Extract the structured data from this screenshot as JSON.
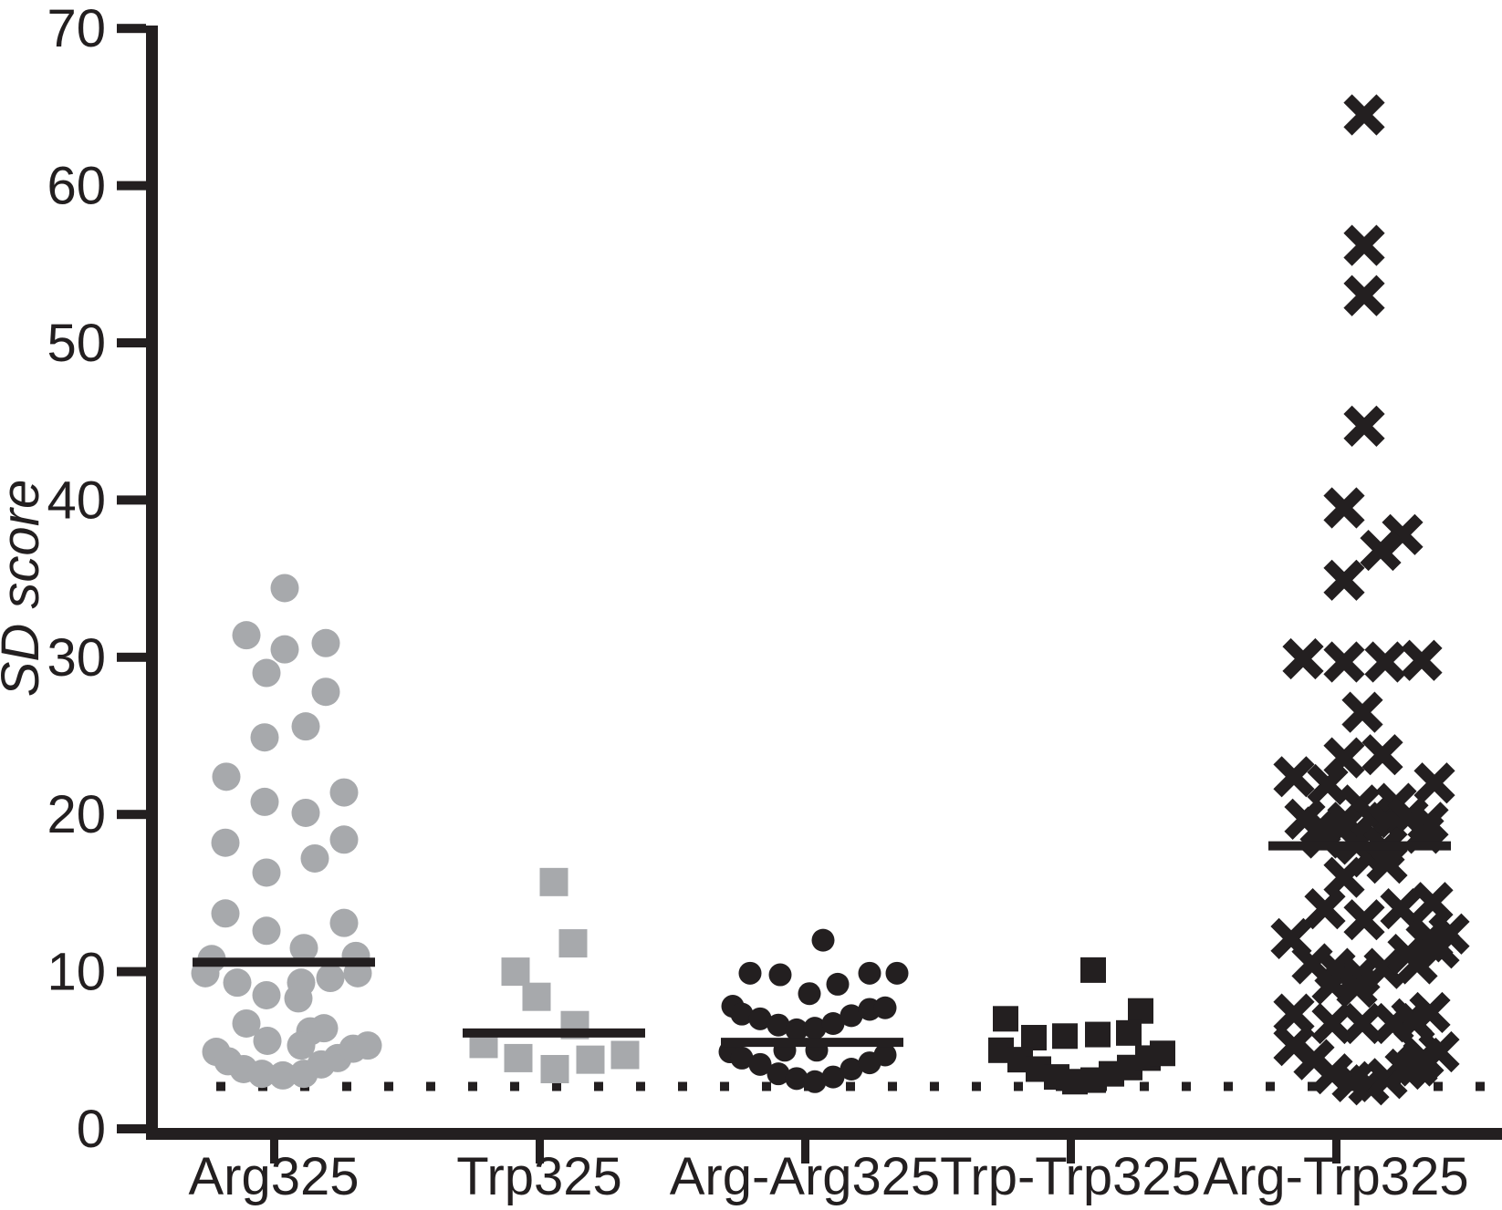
{
  "chart_data": {
    "type": "scatter",
    "title": "",
    "ylabel": "SD score",
    "xlabel": "",
    "ylim": [
      0,
      70
    ],
    "y_ticks": [
      0,
      10,
      20,
      30,
      40,
      50,
      60,
      70
    ],
    "grid": false,
    "legend": "none",
    "threshold_line": {
      "value": 2.7,
      "style": "dotted",
      "color": "#231f20"
    },
    "marker_colors": {
      "gray": "#a7a9ac",
      "black": "#231f20"
    },
    "groups": [
      {
        "label": "Arg325",
        "marker": "circle",
        "color": "#a7a9ac",
        "median": 10.6,
        "median_dx": 11,
        "points": [
          [
            12,
            34.4
          ],
          [
            -30,
            31.4
          ],
          [
            12,
            30.5
          ],
          [
            57,
            30.9
          ],
          [
            -8,
            29.0
          ],
          [
            57,
            27.8
          ],
          [
            35,
            25.6
          ],
          [
            -10,
            24.9
          ],
          [
            -52,
            22.4
          ],
          [
            77,
            21.4
          ],
          [
            -10,
            20.8
          ],
          [
            35,
            20.1
          ],
          [
            -53,
            18.2
          ],
          [
            77,
            18.4
          ],
          [
            45,
            17.2
          ],
          [
            -8,
            16.3
          ],
          [
            -53,
            13.7
          ],
          [
            77,
            13.1
          ],
          [
            -8,
            12.6
          ],
          [
            33,
            11.5
          ],
          [
            -68,
            10.8
          ],
          [
            90,
            11.0
          ],
          [
            -75,
            9.9
          ],
          [
            -40,
            9.3
          ],
          [
            30,
            9.3
          ],
          [
            62,
            9.6
          ],
          [
            92,
            9.9
          ],
          [
            -8,
            8.5
          ],
          [
            27,
            8.3
          ],
          [
            -30,
            6.7
          ],
          [
            55,
            6.4
          ],
          [
            40,
            6.2
          ],
          [
            -7,
            5.6
          ],
          [
            30,
            5.3
          ],
          [
            -63,
            4.9
          ],
          [
            -50,
            4.3
          ],
          [
            -33,
            3.8
          ],
          [
            -13,
            3.5
          ],
          [
            10,
            3.4
          ],
          [
            33,
            3.5
          ],
          [
            52,
            4.1
          ],
          [
            70,
            4.5
          ],
          [
            87,
            5.1
          ],
          [
            103,
            5.3
          ]
        ]
      },
      {
        "label": "Trp325",
        "marker": "square",
        "color": "#a7a9ac",
        "median": 6.1,
        "median_dx": 16,
        "points": [
          [
            16,
            15.7
          ],
          [
            37,
            11.8
          ],
          [
            -26,
            10.0
          ],
          [
            -3,
            8.4
          ],
          [
            39,
            6.6
          ],
          [
            -61,
            5.4
          ],
          [
            -23,
            4.5
          ],
          [
            17,
            3.8
          ],
          [
            56,
            4.4
          ],
          [
            94,
            4.7
          ]
        ]
      },
      {
        "label": "Arg-Arg325",
        "marker": "circle",
        "color": "#231f20",
        "median": 5.5,
        "median_dx": 8,
        "points": [
          [
            20,
            12.0
          ],
          [
            -60,
            9.9
          ],
          [
            -27,
            9.8
          ],
          [
            36,
            9.2
          ],
          [
            71,
            9.9
          ],
          [
            101,
            9.9
          ],
          [
            5,
            8.6
          ],
          [
            -79,
            7.8
          ],
          [
            -69,
            7.3
          ],
          [
            -49,
            7.0
          ],
          [
            -29,
            6.6
          ],
          [
            -9,
            6.3
          ],
          [
            11,
            6.4
          ],
          [
            31,
            6.7
          ],
          [
            51,
            7.2
          ],
          [
            71,
            7.6
          ],
          [
            88,
            7.7
          ],
          [
            -22,
            5.0
          ],
          [
            13,
            5.0
          ],
          [
            -82,
            4.9
          ],
          [
            -69,
            4.5
          ],
          [
            -49,
            4.1
          ],
          [
            -29,
            3.5
          ],
          [
            -9,
            3.2
          ],
          [
            11,
            3.0
          ],
          [
            31,
            3.3
          ],
          [
            51,
            3.8
          ],
          [
            71,
            4.2
          ],
          [
            88,
            4.7
          ]
        ]
      },
      {
        "label": "Trp-Trp325",
        "marker": "square",
        "color": "#231f20",
        "median": null,
        "median_dx": null,
        "points": [
          [
            25,
            10.1
          ],
          [
            77,
            7.5
          ],
          [
            -71,
            7.0
          ],
          [
            64,
            6.1
          ],
          [
            30,
            6.0
          ],
          [
            -6,
            5.9
          ],
          [
            -40,
            5.8
          ],
          [
            -76,
            5.0
          ],
          [
            -55,
            4.4
          ],
          [
            -35,
            3.8
          ],
          [
            -15,
            3.3
          ],
          [
            5,
            3.0
          ],
          [
            25,
            3.1
          ],
          [
            45,
            3.5
          ],
          [
            65,
            3.9
          ],
          [
            85,
            4.5
          ],
          [
            101,
            4.8
          ]
        ]
      },
      {
        "label": "Arg-Trp325",
        "marker": "x",
        "color": "#231f20",
        "median": 18.0,
        "median_dx": 26,
        "points": [
          [
            31,
            64.5
          ],
          [
            31,
            56.2
          ],
          [
            31,
            53.0
          ],
          [
            31,
            44.7
          ],
          [
            9,
            39.5
          ],
          [
            73,
            37.8
          ],
          [
            49,
            36.8
          ],
          [
            9,
            34.9
          ],
          [
            -36,
            29.9
          ],
          [
            9,
            29.7
          ],
          [
            54,
            29.7
          ],
          [
            94,
            29.8
          ],
          [
            29,
            26.5
          ],
          [
            9,
            23.6
          ],
          [
            51,
            23.8
          ],
          [
            -46,
            22.4
          ],
          [
            -9,
            21.9
          ],
          [
            108,
            22.0
          ],
          [
            26,
            20.6
          ],
          [
            66,
            20.7
          ],
          [
            -34,
            19.7
          ],
          [
            -17,
            19.2
          ],
          [
            13,
            19.5
          ],
          [
            39,
            19.8
          ],
          [
            56,
            19.5
          ],
          [
            79,
            19.8
          ],
          [
            101,
            19.5
          ],
          [
            -14,
            18.5
          ],
          [
            23,
            18.1
          ],
          [
            53,
            17.9
          ],
          [
            96,
            18.8
          ],
          [
            36,
            17.3
          ],
          [
            56,
            16.9
          ],
          [
            9,
            16.0
          ],
          [
            -12,
            14.0
          ],
          [
            31,
            13.3
          ],
          [
            71,
            14.0
          ],
          [
            106,
            14.4
          ],
          [
            -49,
            12.1
          ],
          [
            106,
            12.0
          ],
          [
            124,
            12.4
          ],
          [
            -26,
            10.5
          ],
          [
            -1,
            10.2
          ],
          [
            26,
            9.8
          ],
          [
            53,
            10.2
          ],
          [
            79,
            11.1
          ],
          [
            99,
            11.9
          ],
          [
            113,
            11.5
          ],
          [
            89,
            10.5
          ],
          [
            -4,
            9.2
          ],
          [
            23,
            9.0
          ],
          [
            -46,
            7.3
          ],
          [
            103,
            7.4
          ],
          [
            83,
            7.0
          ],
          [
            -4,
            6.7
          ],
          [
            29,
            6.7
          ],
          [
            63,
            6.7
          ],
          [
            86,
            6.8
          ],
          [
            -46,
            5.3
          ],
          [
            -24,
            4.4
          ],
          [
            -4,
            3.5
          ],
          [
            18,
            3.0
          ],
          [
            36,
            2.8
          ],
          [
            56,
            3.2
          ],
          [
            76,
            3.8
          ],
          [
            96,
            4.5
          ],
          [
            113,
            4.9
          ],
          [
            89,
            4.0
          ]
        ]
      }
    ]
  }
}
